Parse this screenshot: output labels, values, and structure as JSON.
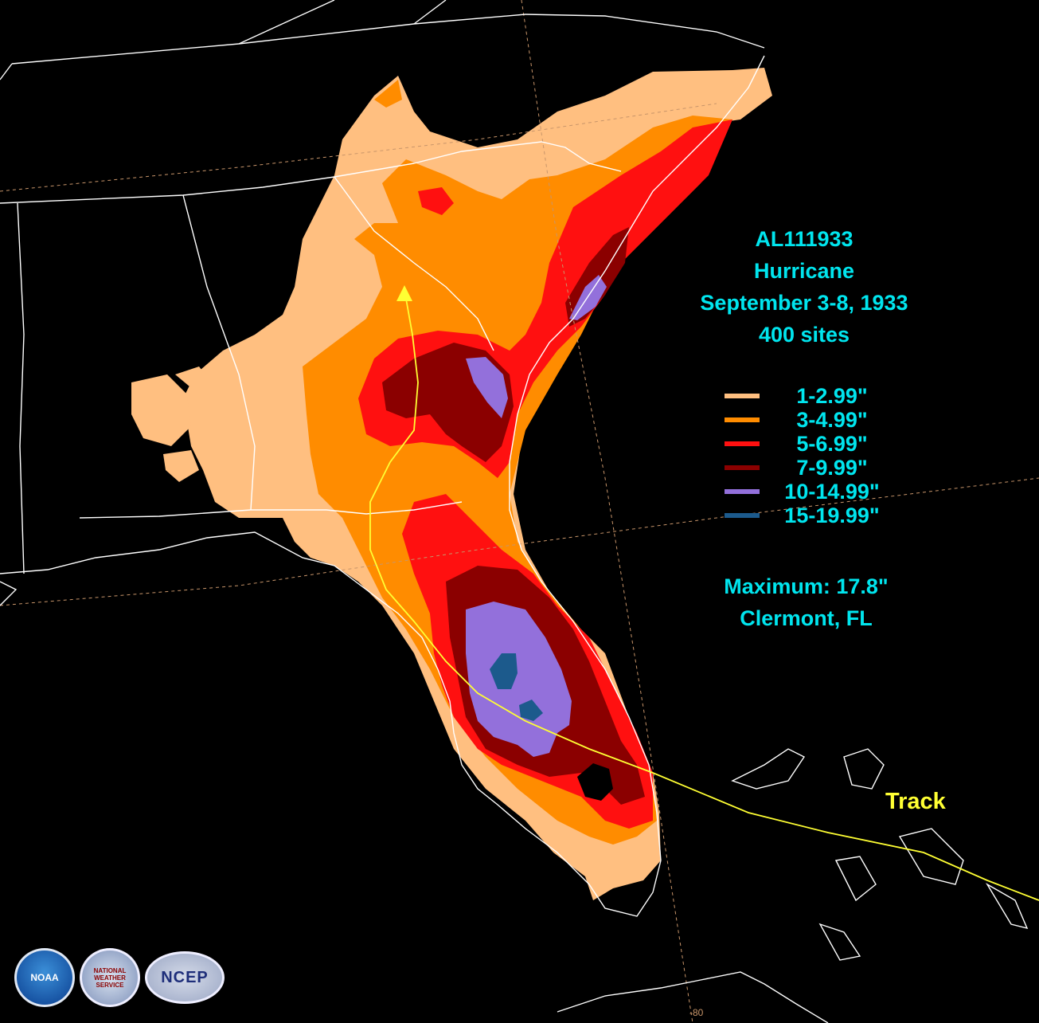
{
  "storm": {
    "id": "AL111933",
    "type": "Hurricane",
    "dates": "September 3-8, 1933",
    "sites": "400 sites"
  },
  "legend": [
    {
      "label": "1-2.99\"",
      "color": "#ffbf80"
    },
    {
      "label": "3-4.99\"",
      "color": "#ff8c00"
    },
    {
      "label": "5-6.99\"",
      "color": "#ff1010"
    },
    {
      "label": "7-9.99\"",
      "color": "#8b0000"
    },
    {
      "label": "10-14.99\"",
      "color": "#9370db"
    },
    {
      "label": "15-19.99\"",
      "color": "#1c5a8c"
    }
  ],
  "maximum": {
    "value": "Maximum: 17.8\"",
    "location": "Clermont, FL"
  },
  "track_label": "Track",
  "longitude_label": "-80",
  "logos": {
    "noaa": "NOAA",
    "nws": "NATIONAL WEATHER SERVICE",
    "ncep": "NCEP"
  },
  "colors": {
    "background": "#000000",
    "borders": "#ffffff",
    "text": "#00e5ee",
    "track": "#ffff33",
    "gridlines": "#c8956a"
  }
}
